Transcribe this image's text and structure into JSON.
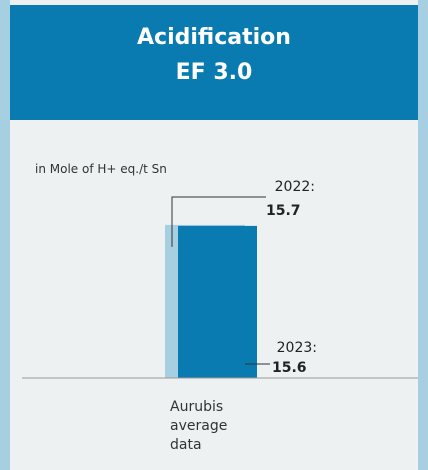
{
  "chart_data": {
    "type": "bar",
    "title": "Acidification",
    "subtitle": "EF 3.0",
    "y_label": "in Mole of H+ eq./t Sn",
    "categories": [
      "Aurubis average data"
    ],
    "series": [
      {
        "name": "2022:",
        "color": "#a6cfe2",
        "values": [
          15.7
        ]
      },
      {
        "name": "2023:",
        "color": "#0a7bb0",
        "values": [
          15.6
        ]
      }
    ]
  }
}
